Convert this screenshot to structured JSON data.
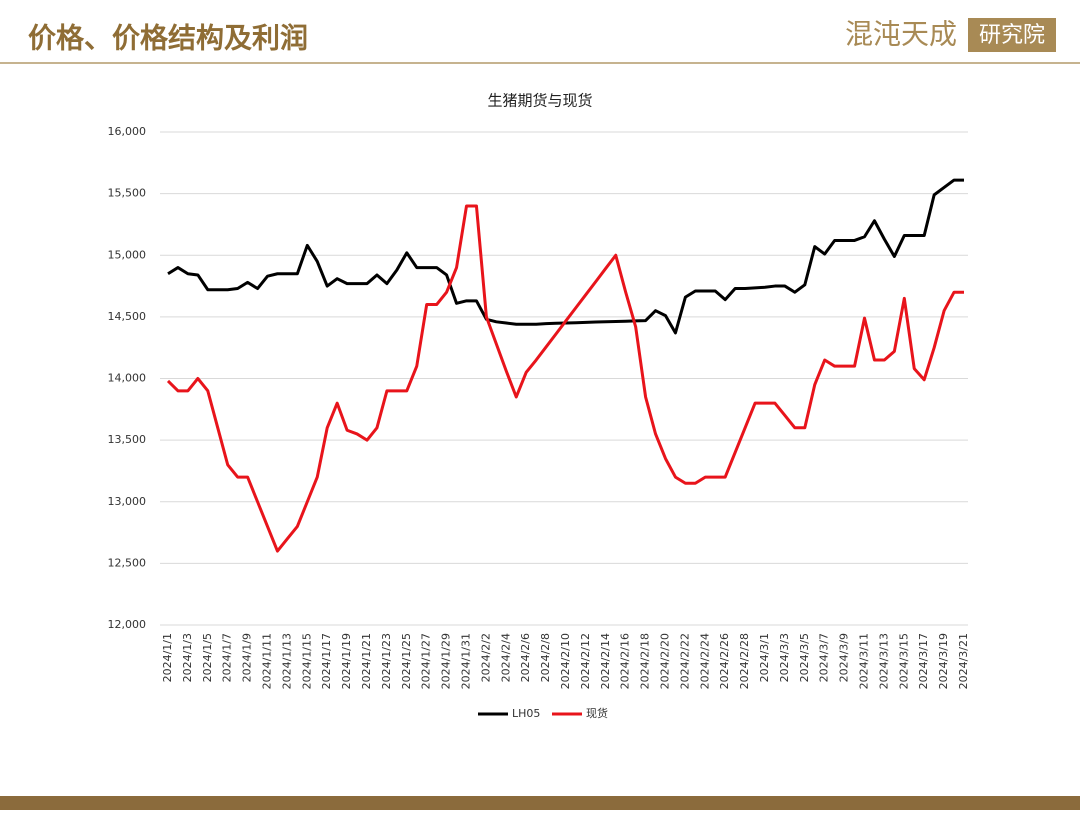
{
  "header": {
    "title": "价格、价格结构及利润",
    "logo_name": "混沌天成",
    "logo_sub": "研究院"
  },
  "chart_data": {
    "type": "line",
    "title": "生猪期货与现货",
    "categories": [
      "2024/1/1",
      null,
      "2024/1/3",
      null,
      "2024/1/5",
      null,
      "2024/1/7",
      null,
      "2024/1/9",
      null,
      "2024/1/11",
      null,
      "2024/1/13",
      null,
      "2024/1/15",
      null,
      "2024/1/17",
      null,
      "2024/1/19",
      null,
      "2024/1/21",
      null,
      "2024/1/23",
      null,
      "2024/1/25",
      null,
      "2024/1/27",
      null,
      "2024/1/29",
      null,
      "2024/1/31",
      null,
      "2024/2/2",
      null,
      "2024/2/4",
      null,
      "2024/2/6",
      null,
      "2024/2/8",
      null,
      "2024/2/10",
      null,
      "2024/2/12",
      null,
      "2024/2/14",
      null,
      "2024/2/16",
      null,
      "2024/2/18",
      null,
      "2024/2/20",
      null,
      "2024/2/22",
      null,
      "2024/2/24",
      null,
      "2024/2/26",
      null,
      "2024/2/28",
      null,
      "2024/3/1",
      null,
      "2024/3/3",
      null,
      "2024/3/5",
      null,
      "2024/3/7",
      null,
      "2024/3/9",
      null,
      "2024/3/11",
      null,
      "2024/3/13",
      null,
      "2024/3/15",
      null,
      "2024/3/17",
      null,
      "2024/3/19",
      null,
      "2024/3/21"
    ],
    "series": [
      {
        "name": "LH05",
        "color": "#000000",
        "values": [
          14850,
          14900,
          14850,
          14840,
          14720,
          14720,
          14720,
          14730,
          14780,
          14730,
          14830,
          14850,
          14850,
          14850,
          15080,
          14950,
          14750,
          14810,
          14770,
          14770,
          14770,
          14840,
          14770,
          14880,
          15020,
          14900,
          14900,
          14900,
          14840,
          14610,
          14630,
          14630,
          14480,
          14460,
          14450,
          14440,
          14440,
          14440,
          14445,
          14448,
          14450,
          14452,
          14455,
          14458,
          14460,
          14462,
          14465,
          14468,
          14470,
          14550,
          14510,
          14370,
          14660,
          14710,
          14710,
          14710,
          14640,
          14730,
          14730,
          14735,
          14740,
          14750,
          14750,
          14700,
          14760,
          15070,
          15010,
          15120,
          15120,
          15120,
          15150,
          15280,
          15130,
          14990,
          15160,
          15160,
          15160,
          15490,
          15550,
          15610,
          15610
        ]
      },
      {
        "name": "现货",
        "color": "#e8141b",
        "values": [
          13980,
          13900,
          13900,
          14000,
          13900,
          13600,
          13300,
          13200,
          13200,
          13000,
          12800,
          12600,
          12700,
          12800,
          13000,
          13200,
          13600,
          13800,
          13580,
          13550,
          13500,
          13600,
          13900,
          13900,
          13900,
          14100,
          14600,
          14600,
          14700,
          14900,
          15400,
          15400,
          14500,
          14280,
          14060,
          13850,
          14050,
          14150,
          14256,
          14362,
          14469,
          14575,
          14681,
          14787,
          14894,
          15000,
          14700,
          14420,
          13850,
          13550,
          13350,
          13200,
          13150,
          13150,
          13200,
          13200,
          13200,
          13400,
          13600,
          13800,
          13800,
          13800,
          13700,
          13600,
          13600,
          13950,
          14150,
          14100,
          14100,
          14100,
          14490,
          14150,
          14150,
          14220,
          14650,
          14080,
          13990,
          14250,
          14550,
          14700,
          14700
        ]
      }
    ],
    "ylim": [
      12000,
      16000
    ],
    "yticks": [
      {
        "value": 12000,
        "label": "12,000"
      },
      {
        "value": 12500,
        "label": "12,500"
      },
      {
        "value": 13000,
        "label": "13,000"
      },
      {
        "value": 13500,
        "label": "13,500"
      },
      {
        "value": 14000,
        "label": "14,000"
      },
      {
        "value": 14500,
        "label": "14,500"
      },
      {
        "value": 15000,
        "label": "15,000"
      },
      {
        "value": 15500,
        "label": "15,500"
      },
      {
        "value": 16000,
        "label": "16,000"
      }
    ],
    "grid": true,
    "legend": "bottom"
  }
}
